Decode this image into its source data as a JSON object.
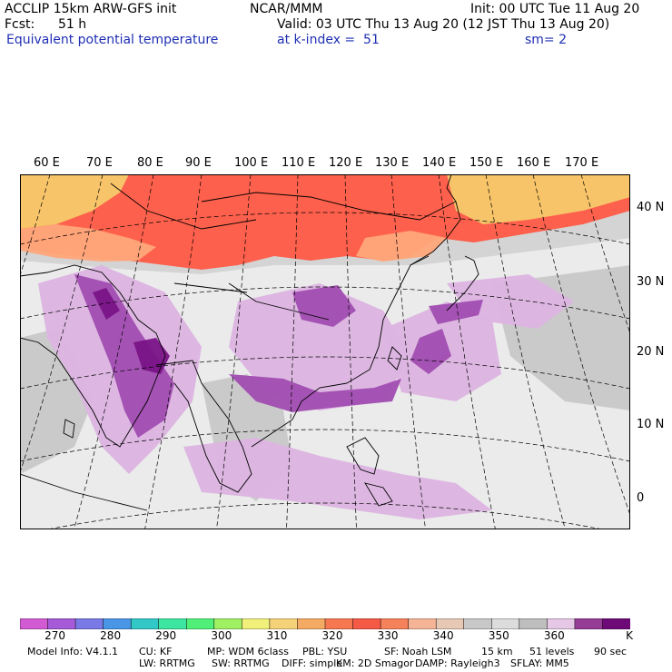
{
  "header": {
    "model_title": "ACCLIP 15km ARW-GFS init",
    "org": "NCAR/MMM",
    "init": "Init: 00 UTC Tue 11 Aug 20",
    "fcst_label": "Fcst:",
    "fcst_value": "51 h",
    "valid": "Valid: 03 UTC Thu 13 Aug 20 (12 JST Thu 13 Aug 20)",
    "field_name": "Equivalent potential temperature",
    "level": "at k-index =  51",
    "smoothing": "sm= 2"
  },
  "map": {
    "lon_labels": [
      "60 E",
      "70 E",
      "80 E",
      "90 E",
      "100 E",
      "110 E",
      "120 E",
      "130 E",
      "140 E",
      "150 E",
      "160 E",
      "170 E"
    ],
    "lat_labels": [
      "40 N",
      "30 N",
      "20 N",
      "10 N",
      "0"
    ],
    "colors": {
      "land_outline": "#000000",
      "grid": "#000000",
      "very_warm": "#ff5a45",
      "warm": "#ffa67a",
      "cool": "#f7c96a",
      "neutral": "#c8c8c8",
      "light": "#ececec",
      "purple_light": "#dcb4e2",
      "purple_mid": "#a04cb0",
      "purple_dark": "#7a1488"
    }
  },
  "colorbar": {
    "colors": [
      "#d25ad2",
      "#a65ad8",
      "#7a7ae6",
      "#4a96e6",
      "#32c8c8",
      "#3ce6a0",
      "#50f078",
      "#a0f064",
      "#f0f07a",
      "#f5d278",
      "#f5aa64",
      "#f57850",
      "#f55a46",
      "#f5825a",
      "#f5b496",
      "#e6c8b4",
      "#c8c8c8",
      "#dcdcdc",
      "#bebebe",
      "#e6c8e6",
      "#963c96",
      "#6e0a78"
    ],
    "labels": [
      "270",
      "280",
      "290",
      "300",
      "310",
      "320",
      "330",
      "340",
      "350",
      "360"
    ],
    "unit": "K"
  },
  "footer": {
    "line1": [
      "Model Info: V4.1.1",
      "CU: KF",
      "MP: WDM 6class",
      "PBL: YSU",
      "SF: Noah LSM",
      "15 km",
      "51 levels",
      "90 sec"
    ],
    "line2": [
      "LW: RRTMG",
      "SW: RRTMG",
      "DIFF: simple",
      "KM: 2D Smagor",
      "DAMP: Rayleigh3",
      "SFLAY: MM5"
    ]
  }
}
